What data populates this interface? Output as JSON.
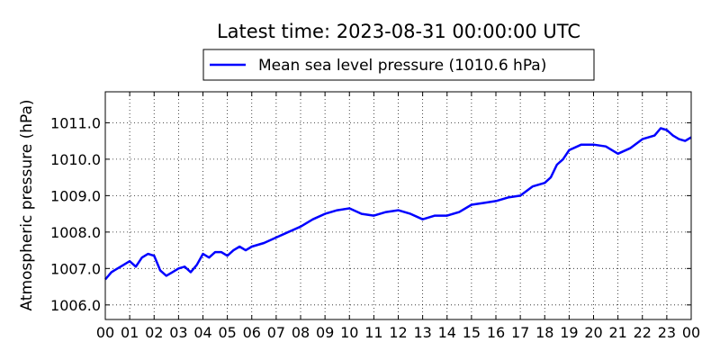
{
  "chart_data": {
    "type": "line",
    "title": "Latest time: 2023-08-31 00:00:00 UTC",
    "xlabel": "",
    "ylabel": "Atmospheric pressure (hPa)",
    "xlim": [
      0,
      24
    ],
    "ylim": [
      1005.6,
      1011.85
    ],
    "x_tick_labels": [
      "00",
      "01",
      "02",
      "03",
      "04",
      "05",
      "06",
      "07",
      "08",
      "09",
      "10",
      "11",
      "12",
      "13",
      "14",
      "15",
      "16",
      "17",
      "18",
      "19",
      "20",
      "21",
      "22",
      "23",
      "00"
    ],
    "y_ticks": [
      1006.0,
      1007.0,
      1008.0,
      1009.0,
      1010.0,
      1011.0
    ],
    "y_tick_labels": [
      "1006.0",
      "1007.0",
      "1008.0",
      "1009.0",
      "1010.0",
      "1011.0"
    ],
    "grid": true,
    "legend_position": "top-center",
    "colors": {
      "series": "#0000ff"
    },
    "series": [
      {
        "name": "Mean sea level pressure (1010.6 hPa)",
        "x": [
          0,
          0.25,
          0.5,
          0.75,
          1,
          1.25,
          1.5,
          1.75,
          2,
          2.25,
          2.5,
          2.75,
          3,
          3.25,
          3.5,
          3.75,
          4,
          4.25,
          4.5,
          4.75,
          5,
          5.25,
          5.5,
          5.75,
          6,
          6.5,
          7,
          7.5,
          8,
          8.5,
          9,
          9.5,
          10,
          10.5,
          11,
          11.5,
          12,
          12.5,
          13,
          13.5,
          14,
          14.5,
          15,
          15.5,
          16,
          16.5,
          17,
          17.5,
          18,
          18.25,
          18.5,
          18.75,
          19,
          19.5,
          20,
          20.5,
          21,
          21.5,
          22,
          22.5,
          22.75,
          23,
          23.25,
          23.5,
          23.75,
          24
        ],
        "values": [
          1006.7,
          1006.9,
          1007.0,
          1007.1,
          1007.2,
          1007.05,
          1007.3,
          1007.4,
          1007.35,
          1006.95,
          1006.8,
          1006.9,
          1007.0,
          1007.05,
          1006.9,
          1007.1,
          1007.4,
          1007.3,
          1007.45,
          1007.45,
          1007.35,
          1007.5,
          1007.6,
          1007.5,
          1007.6,
          1007.7,
          1007.85,
          1008.0,
          1008.15,
          1008.35,
          1008.5,
          1008.6,
          1008.65,
          1008.5,
          1008.45,
          1008.55,
          1008.6,
          1008.5,
          1008.35,
          1008.45,
          1008.45,
          1008.55,
          1008.75,
          1008.8,
          1008.85,
          1008.95,
          1009.0,
          1009.25,
          1009.35,
          1009.5,
          1009.85,
          1010.0,
          1010.25,
          1010.4,
          1010.4,
          1010.35,
          1010.15,
          1010.3,
          1010.55,
          1010.65,
          1010.85,
          1010.8,
          1010.65,
          1010.55,
          1010.5,
          1010.6
        ]
      }
    ]
  }
}
